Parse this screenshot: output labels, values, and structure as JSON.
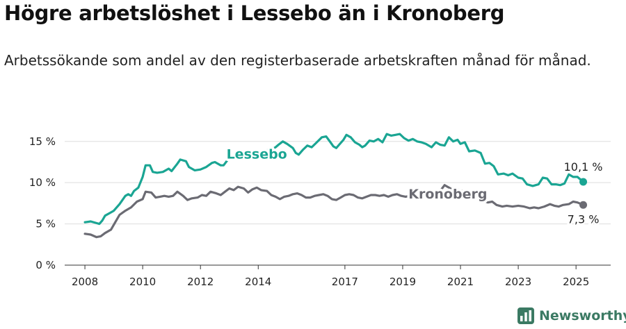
{
  "title": "Högre arbetslöshet i Lessebo än i Kronoberg",
  "subtitle": "Arbetssökande som andel av den registerbaserade arbetskraften månad för månad.",
  "brand": {
    "name": "Newsworthy",
    "icon": "newsworthy-logo-icon",
    "color": "#3b7a63"
  },
  "chart_data": {
    "type": "line",
    "xlim": [
      2007.3,
      2026.2
    ],
    "ylim": [
      0,
      17
    ],
    "y_ticks": [
      0,
      5,
      10,
      15
    ],
    "y_tick_labels": [
      "0 %",
      "5 %",
      "10 %",
      "15 %"
    ],
    "x_ticks": [
      2008,
      2010,
      2012,
      2014,
      2017,
      2019,
      2021,
      2023,
      2025
    ],
    "x_tick_labels": [
      "2008",
      "2010",
      "2012",
      "2014",
      "2017",
      "2019",
      "2021",
      "2023",
      "2025"
    ],
    "grid": "horizontal",
    "series": [
      {
        "name": "Lessebo",
        "color": "#1aa593",
        "end_label": "10,1 %",
        "label_at": [
          2012.9,
          12.9
        ],
        "points": [
          [
            2008.0,
            5.2
          ],
          [
            2008.2,
            5.3
          ],
          [
            2008.4,
            5.1
          ],
          [
            2008.5,
            5.0
          ],
          [
            2008.6,
            5.4
          ],
          [
            2008.7,
            6.0
          ],
          [
            2008.9,
            6.4
          ],
          [
            2009.0,
            6.6
          ],
          [
            2009.2,
            7.4
          ],
          [
            2009.4,
            8.4
          ],
          [
            2009.5,
            8.6
          ],
          [
            2009.6,
            8.4
          ],
          [
            2009.7,
            9.0
          ],
          [
            2009.85,
            9.4
          ],
          [
            2010.0,
            10.7
          ],
          [
            2010.1,
            12.1
          ],
          [
            2010.25,
            12.1
          ],
          [
            2010.35,
            11.3
          ],
          [
            2010.5,
            11.2
          ],
          [
            2010.7,
            11.3
          ],
          [
            2010.9,
            11.7
          ],
          [
            2011.0,
            11.4
          ],
          [
            2011.2,
            12.3
          ],
          [
            2011.3,
            12.8
          ],
          [
            2011.5,
            12.6
          ],
          [
            2011.6,
            11.9
          ],
          [
            2011.8,
            11.5
          ],
          [
            2012.0,
            11.6
          ],
          [
            2012.2,
            11.9
          ],
          [
            2012.4,
            12.4
          ],
          [
            2012.5,
            12.5
          ],
          [
            2012.7,
            12.1
          ],
          [
            2012.8,
            12.1
          ],
          [
            2012.95,
            12.8
          ],
          [
            2013.2,
            13.0
          ],
          [
            2013.4,
            13.0
          ],
          [
            2013.5,
            13.6
          ],
          [
            2013.6,
            13.9
          ],
          [
            2013.7,
            13.7
          ],
          [
            2013.85,
            13.6
          ],
          [
            2014.0,
            13.4
          ],
          [
            2014.2,
            13.7
          ],
          [
            2014.35,
            14.0
          ],
          [
            2014.5,
            14.1
          ],
          [
            2014.6,
            14.3
          ],
          [
            2014.7,
            14.6
          ],
          [
            2014.85,
            15.0
          ],
          [
            2015.0,
            14.7
          ],
          [
            2015.2,
            14.2
          ],
          [
            2015.3,
            13.6
          ],
          [
            2015.4,
            13.4
          ],
          [
            2015.55,
            14.0
          ],
          [
            2015.7,
            14.5
          ],
          [
            2015.85,
            14.3
          ],
          [
            2016.0,
            14.8
          ],
          [
            2016.2,
            15.5
          ],
          [
            2016.35,
            15.6
          ],
          [
            2016.5,
            14.9
          ],
          [
            2016.6,
            14.4
          ],
          [
            2016.7,
            14.2
          ],
          [
            2016.8,
            14.6
          ],
          [
            2016.95,
            15.2
          ],
          [
            2017.05,
            15.8
          ],
          [
            2017.2,
            15.5
          ],
          [
            2017.35,
            14.9
          ],
          [
            2017.5,
            14.6
          ],
          [
            2017.6,
            14.3
          ],
          [
            2017.7,
            14.5
          ],
          [
            2017.85,
            15.1
          ],
          [
            2018.0,
            15.0
          ],
          [
            2018.15,
            15.3
          ],
          [
            2018.3,
            14.9
          ],
          [
            2018.45,
            15.9
          ],
          [
            2018.6,
            15.7
          ],
          [
            2018.75,
            15.8
          ],
          [
            2018.9,
            15.9
          ],
          [
            2019.05,
            15.4
          ],
          [
            2019.2,
            15.1
          ],
          [
            2019.35,
            15.3
          ],
          [
            2019.5,
            15.0
          ],
          [
            2019.65,
            14.9
          ],
          [
            2019.8,
            14.7
          ],
          [
            2020.0,
            14.3
          ],
          [
            2020.15,
            14.9
          ],
          [
            2020.3,
            14.6
          ],
          [
            2020.45,
            14.5
          ],
          [
            2020.6,
            15.5
          ],
          [
            2020.75,
            15.0
          ],
          [
            2020.9,
            15.2
          ],
          [
            2021.0,
            14.7
          ],
          [
            2021.15,
            14.9
          ],
          [
            2021.3,
            13.8
          ],
          [
            2021.5,
            13.9
          ],
          [
            2021.7,
            13.6
          ],
          [
            2021.85,
            12.3
          ],
          [
            2022.0,
            12.4
          ],
          [
            2022.15,
            12.0
          ],
          [
            2022.3,
            11.0
          ],
          [
            2022.5,
            11.1
          ],
          [
            2022.65,
            10.9
          ],
          [
            2022.8,
            11.1
          ],
          [
            2023.0,
            10.6
          ],
          [
            2023.15,
            10.5
          ],
          [
            2023.3,
            9.8
          ],
          [
            2023.5,
            9.6
          ],
          [
            2023.7,
            9.8
          ],
          [
            2023.85,
            10.6
          ],
          [
            2024.0,
            10.5
          ],
          [
            2024.15,
            9.8
          ],
          [
            2024.3,
            9.8
          ],
          [
            2024.45,
            9.7
          ],
          [
            2024.6,
            9.9
          ],
          [
            2024.75,
            11.0
          ],
          [
            2024.9,
            10.7
          ],
          [
            2025.05,
            10.7
          ],
          [
            2025.25,
            10.1
          ]
        ]
      },
      {
        "name": "Kronoberg",
        "color": "#6b6b73",
        "end_label": "7,3 %",
        "label_at": [
          2019.2,
          8.1
        ],
        "points": [
          [
            2008.0,
            3.8
          ],
          [
            2008.2,
            3.7
          ],
          [
            2008.4,
            3.4
          ],
          [
            2008.55,
            3.5
          ],
          [
            2008.7,
            3.9
          ],
          [
            2008.9,
            4.3
          ],
          [
            2009.05,
            5.2
          ],
          [
            2009.2,
            6.1
          ],
          [
            2009.4,
            6.6
          ],
          [
            2009.6,
            7.0
          ],
          [
            2009.8,
            7.7
          ],
          [
            2010.0,
            8.0
          ],
          [
            2010.1,
            8.9
          ],
          [
            2010.3,
            8.8
          ],
          [
            2010.45,
            8.2
          ],
          [
            2010.6,
            8.3
          ],
          [
            2010.75,
            8.4
          ],
          [
            2010.9,
            8.3
          ],
          [
            2011.05,
            8.4
          ],
          [
            2011.2,
            8.9
          ],
          [
            2011.4,
            8.4
          ],
          [
            2011.55,
            7.9
          ],
          [
            2011.7,
            8.1
          ],
          [
            2011.9,
            8.2
          ],
          [
            2012.05,
            8.5
          ],
          [
            2012.2,
            8.4
          ],
          [
            2012.35,
            8.9
          ],
          [
            2012.55,
            8.7
          ],
          [
            2012.7,
            8.5
          ],
          [
            2012.85,
            8.9
          ],
          [
            2013.0,
            9.3
          ],
          [
            2013.15,
            9.1
          ],
          [
            2013.3,
            9.5
          ],
          [
            2013.5,
            9.3
          ],
          [
            2013.65,
            8.8
          ],
          [
            2013.8,
            9.2
          ],
          [
            2013.95,
            9.4
          ],
          [
            2014.1,
            9.1
          ],
          [
            2014.3,
            9.0
          ],
          [
            2014.45,
            8.5
          ],
          [
            2014.6,
            8.3
          ],
          [
            2014.75,
            8.0
          ],
          [
            2014.9,
            8.3
          ],
          [
            2015.05,
            8.4
          ],
          [
            2015.2,
            8.6
          ],
          [
            2015.35,
            8.7
          ],
          [
            2015.5,
            8.5
          ],
          [
            2015.65,
            8.2
          ],
          [
            2015.8,
            8.2
          ],
          [
            2015.95,
            8.4
          ],
          [
            2016.1,
            8.5
          ],
          [
            2016.25,
            8.6
          ],
          [
            2016.4,
            8.4
          ],
          [
            2016.55,
            8.0
          ],
          [
            2016.7,
            7.9
          ],
          [
            2016.85,
            8.2
          ],
          [
            2017.0,
            8.5
          ],
          [
            2017.15,
            8.6
          ],
          [
            2017.3,
            8.5
          ],
          [
            2017.45,
            8.2
          ],
          [
            2017.6,
            8.1
          ],
          [
            2017.75,
            8.3
          ],
          [
            2017.9,
            8.5
          ],
          [
            2018.05,
            8.5
          ],
          [
            2018.2,
            8.4
          ],
          [
            2018.35,
            8.5
          ],
          [
            2018.5,
            8.3
          ],
          [
            2018.65,
            8.5
          ],
          [
            2018.8,
            8.6
          ],
          [
            2018.95,
            8.4
          ],
          [
            2019.1,
            8.3
          ],
          [
            2019.25,
            8.4
          ],
          [
            2019.4,
            8.6
          ],
          [
            2019.55,
            8.5
          ],
          [
            2019.7,
            8.3
          ],
          [
            2019.85,
            8.4
          ],
          [
            2020.0,
            8.2
          ],
          [
            2020.15,
            8.3
          ],
          [
            2020.3,
            9.0
          ],
          [
            2020.45,
            9.7
          ],
          [
            2020.6,
            9.4
          ],
          [
            2020.75,
            9.1
          ],
          [
            2020.9,
            9.2
          ],
          [
            2021.05,
            9.0
          ],
          [
            2021.2,
            8.7
          ],
          [
            2021.35,
            8.5
          ],
          [
            2021.5,
            8.5
          ],
          [
            2021.65,
            8.2
          ],
          [
            2021.8,
            7.8
          ],
          [
            2021.95,
            7.6
          ],
          [
            2022.1,
            7.7
          ],
          [
            2022.25,
            7.3
          ],
          [
            2022.45,
            7.1
          ],
          [
            2022.6,
            7.2
          ],
          [
            2022.8,
            7.1
          ],
          [
            2023.0,
            7.2
          ],
          [
            2023.2,
            7.1
          ],
          [
            2023.4,
            6.9
          ],
          [
            2023.55,
            7.0
          ],
          [
            2023.7,
            6.9
          ],
          [
            2023.9,
            7.1
          ],
          [
            2024.1,
            7.4
          ],
          [
            2024.25,
            7.2
          ],
          [
            2024.4,
            7.1
          ],
          [
            2024.55,
            7.3
          ],
          [
            2024.75,
            7.4
          ],
          [
            2024.9,
            7.7
          ],
          [
            2025.05,
            7.6
          ],
          [
            2025.25,
            7.3
          ]
        ]
      }
    ]
  }
}
